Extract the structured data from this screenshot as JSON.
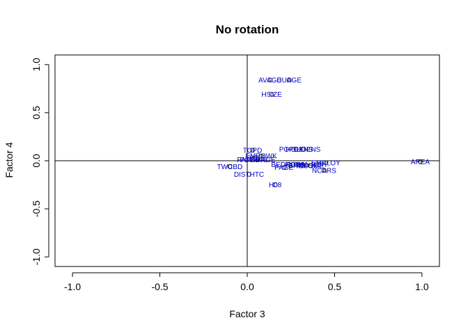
{
  "chart_data": {
    "type": "scatter",
    "title": "No rotation",
    "xlabel": "Factor 3",
    "ylabel": "Factor 4",
    "xlim": [
      -1.1,
      1.1
    ],
    "ylim": [
      -1.1,
      1.1
    ],
    "xticks": [
      -1.0,
      -0.5,
      0.0,
      0.5,
      1.0
    ],
    "xtick_labels": [
      "-1.0",
      "-0.5",
      "0.0",
      "0.5",
      "1.0"
    ],
    "yticks": [
      -1.0,
      -0.5,
      0.0,
      0.5,
      1.0
    ],
    "ytick_labels": [
      "-1.0",
      "-0.5",
      "0.0",
      "0.5",
      "1.0"
    ],
    "reference_lines": {
      "h": 0,
      "v": 0
    },
    "grid": false,
    "label_color": "#0000CC",
    "marker_color": "#000000",
    "points": [
      {
        "label": "AVAGE",
        "x": 0.13,
        "y": 0.84
      },
      {
        "label": "DUAGE",
        "x": 0.24,
        "y": 0.84
      },
      {
        "label": "HSIZE",
        "x": 0.14,
        "y": 0.69
      },
      {
        "label": "TOPD",
        "x": 0.03,
        "y": 0.11
      },
      {
        "label": "POPDENS",
        "x": 0.28,
        "y": 0.12
      },
      {
        "label": "HOUDENS",
        "x": 0.32,
        "y": 0.12
      },
      {
        "label": "EMPOWK",
        "x": 0.08,
        "y": 0.05
      },
      {
        "label": "PAGE",
        "x": 0.05,
        "y": 0.03
      },
      {
        "label": "PARKING",
        "x": 0.03,
        "y": 0.01
      },
      {
        "label": "PCOMPGE",
        "x": 0.06,
        "y": 0.01
      },
      {
        "label": "EMPLOY",
        "x": 0.45,
        "y": -0.02
      },
      {
        "label": "BEDROOM",
        "x": 0.24,
        "y": -0.04
      },
      {
        "label": "HOWN",
        "x": 0.28,
        "y": -0.04
      },
      {
        "label": "BHOUSE",
        "x": 0.32,
        "y": -0.05
      },
      {
        "label": "INCOME",
        "x": 0.36,
        "y": -0.05
      },
      {
        "label": "HOH",
        "x": 0.41,
        "y": -0.04
      },
      {
        "label": "PAGE",
        "x": 0.21,
        "y": -0.07
      },
      {
        "label": "NCARS",
        "x": 0.44,
        "y": -0.1
      },
      {
        "label": "AREA",
        "x": 0.99,
        "y": -0.01
      },
      {
        "label": "TWCBD",
        "x": -0.1,
        "y": -0.06
      },
      {
        "label": "DISTHTC",
        "x": 0.01,
        "y": -0.14
      },
      {
        "label": "H08",
        "x": 0.16,
        "y": -0.25
      }
    ]
  }
}
